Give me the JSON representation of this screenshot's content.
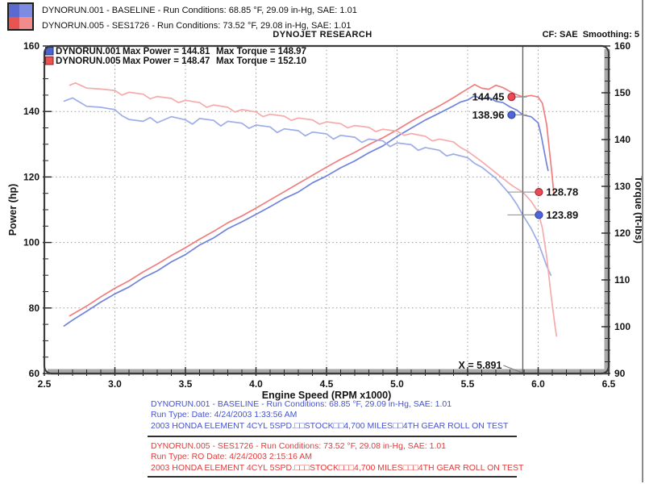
{
  "header": {
    "run1": "DYNORUN.001 - BASELINE  -  Run Conditions: 68.85 °F, 29.09 in-Hg, SAE: 1.01",
    "run2": "DYNORUN.005 - SES1726 -  Run Conditions: 73.52 °F, 29.08 in-Hg, SAE: 1.01",
    "brand": "DYNOJET RESEARCH",
    "cf": "CF: SAE  Smoothing: 5",
    "swatch_colors": {
      "blue_dark": "#5a6ad0",
      "blue_light": "#7d8ce2",
      "red_dark": "#e85450",
      "red_light": "#f28c8c"
    }
  },
  "chart_data": {
    "type": "line",
    "title": "DYNOJET RESEARCH",
    "xlabel": "Engine Speed (RPM x1000)",
    "ylabel_left": "Power (hp)",
    "ylabel_right": "Torque (ft-lbs)",
    "xlim": [
      2.5,
      6.5
    ],
    "x_major_step": 0.5,
    "x_minor_step": 0.1,
    "ylim_left": [
      60,
      160
    ],
    "y_left_major_step": 20,
    "y_left_minor_step": 5,
    "ylim_right": [
      90,
      160
    ],
    "y_right_major_step": 10,
    "y_right_minor_step": 2.5,
    "grid": {
      "vertical_rpm": [
        3.0,
        3.5,
        4.0,
        4.5,
        5.0,
        5.5,
        6.0
      ],
      "horizontal_power": [
        80,
        100,
        120,
        140
      ]
    },
    "legend": {
      "rows": [
        {
          "name": "DYNORUN.001",
          "max_power": "Max Power = 144.81",
          "max_torque": "Max Torque = 148.97",
          "swatch": "#4c63d2",
          "swatch_border": "#26306e"
        },
        {
          "name": "DYNORUN.005",
          "max_power": "Max Power = 148.47",
          "max_torque": "Max Torque = 152.10",
          "swatch": "#ef5050",
          "swatch_border": "#7e2727"
        }
      ]
    },
    "cursor": {
      "x": 5.891,
      "label": "X = 5.891"
    },
    "callouts": [
      {
        "label": "144.45",
        "axis": "left",
        "value": 144.45,
        "dot_fill": "#ea4a56",
        "dot_stroke": "#99202c",
        "side": "left"
      },
      {
        "label": "138.96",
        "axis": "left",
        "value": 138.96,
        "dot_fill": "#5066d6",
        "dot_stroke": "#273a99",
        "side": "left"
      },
      {
        "label": "128.78",
        "axis": "right",
        "value": 128.78,
        "dot_fill": "#ea4a56",
        "dot_stroke": "#99202c",
        "side": "right"
      },
      {
        "label": "123.89",
        "axis": "right",
        "value": 123.89,
        "dot_fill": "#5066d6",
        "dot_stroke": "#273a99",
        "side": "right"
      }
    ],
    "series": [
      {
        "name": "DYNORUN.001 Power",
        "axis": "left",
        "color": "#7083dc",
        "points": [
          [
            2.64,
            74.5
          ],
          [
            2.7,
            76.3
          ],
          [
            2.8,
            79.0
          ],
          [
            2.9,
            81.8
          ],
          [
            3.0,
            84.3
          ],
          [
            3.1,
            86.4
          ],
          [
            3.2,
            89.2
          ],
          [
            3.3,
            91.3
          ],
          [
            3.4,
            94.1
          ],
          [
            3.5,
            96.3
          ],
          [
            3.6,
            99.2
          ],
          [
            3.7,
            101.4
          ],
          [
            3.8,
            104.2
          ],
          [
            3.9,
            106.3
          ],
          [
            4.0,
            108.6
          ],
          [
            4.1,
            110.9
          ],
          [
            4.2,
            113.4
          ],
          [
            4.3,
            115.4
          ],
          [
            4.4,
            118.2
          ],
          [
            4.5,
            120.3
          ],
          [
            4.6,
            122.8
          ],
          [
            4.7,
            124.9
          ],
          [
            4.8,
            127.4
          ],
          [
            4.9,
            129.5
          ],
          [
            5.0,
            132.4
          ],
          [
            5.1,
            134.9
          ],
          [
            5.2,
            137.4
          ],
          [
            5.3,
            139.5
          ],
          [
            5.4,
            141.7
          ],
          [
            5.45,
            142.9
          ],
          [
            5.5,
            143.5
          ],
          [
            5.55,
            144.8
          ],
          [
            5.6,
            143.7
          ],
          [
            5.65,
            144.3
          ],
          [
            5.7,
            143.1
          ],
          [
            5.75,
            142.7
          ],
          [
            5.8,
            141.4
          ],
          [
            5.85,
            140.4
          ],
          [
            5.891,
            138.96
          ],
          [
            5.95,
            138.4
          ],
          [
            6.0,
            136.5
          ],
          [
            6.02,
            133.0
          ],
          [
            6.04,
            128.5
          ],
          [
            6.06,
            124.0
          ],
          [
            6.07,
            122.0
          ]
        ]
      },
      {
        "name": "DYNORUN.005 Power",
        "axis": "left",
        "color": "#f17e7e",
        "points": [
          [
            2.68,
            77.6
          ],
          [
            2.8,
            80.6
          ],
          [
            2.9,
            83.4
          ],
          [
            3.0,
            86.0
          ],
          [
            3.1,
            88.3
          ],
          [
            3.2,
            91.0
          ],
          [
            3.3,
            93.4
          ],
          [
            3.4,
            96.0
          ],
          [
            3.5,
            98.4
          ],
          [
            3.6,
            101.0
          ],
          [
            3.7,
            103.4
          ],
          [
            3.8,
            106.0
          ],
          [
            3.9,
            108.1
          ],
          [
            4.0,
            110.5
          ],
          [
            4.1,
            113.0
          ],
          [
            4.2,
            115.5
          ],
          [
            4.3,
            118.0
          ],
          [
            4.4,
            120.5
          ],
          [
            4.5,
            123.0
          ],
          [
            4.6,
            125.4
          ],
          [
            4.7,
            127.5
          ],
          [
            4.8,
            129.9
          ],
          [
            4.9,
            132.0
          ],
          [
            5.0,
            134.4
          ],
          [
            5.1,
            137.0
          ],
          [
            5.2,
            139.4
          ],
          [
            5.3,
            141.7
          ],
          [
            5.4,
            144.2
          ],
          [
            5.45,
            145.6
          ],
          [
            5.5,
            146.9
          ],
          [
            5.55,
            148.2
          ],
          [
            5.6,
            147.1
          ],
          [
            5.65,
            146.8
          ],
          [
            5.7,
            148.0
          ],
          [
            5.75,
            147.3
          ],
          [
            5.8,
            146.1
          ],
          [
            5.85,
            145.1
          ],
          [
            5.891,
            144.45
          ],
          [
            5.95,
            144.9
          ],
          [
            6.0,
            144.4
          ],
          [
            6.03,
            142.5
          ],
          [
            6.06,
            136.0
          ],
          [
            6.08,
            128.0
          ],
          [
            6.1,
            120.0
          ],
          [
            6.11,
            115.0
          ]
        ]
      },
      {
        "name": "DYNORUN.001 Torque",
        "axis": "right",
        "color": "#9dade9",
        "points": [
          [
            2.64,
            148.2
          ],
          [
            2.7,
            148.9
          ],
          [
            2.8,
            147.1
          ],
          [
            2.9,
            146.9
          ],
          [
            3.0,
            146.4
          ],
          [
            3.05,
            145.1
          ],
          [
            3.1,
            144.3
          ],
          [
            3.2,
            143.9
          ],
          [
            3.25,
            144.7
          ],
          [
            3.3,
            143.6
          ],
          [
            3.4,
            144.9
          ],
          [
            3.5,
            144.2
          ],
          [
            3.55,
            143.3
          ],
          [
            3.6,
            144.5
          ],
          [
            3.7,
            144.1
          ],
          [
            3.75,
            142.9
          ],
          [
            3.8,
            143.9
          ],
          [
            3.9,
            143.5
          ],
          [
            3.95,
            142.4
          ],
          [
            4.0,
            143.1
          ],
          [
            4.1,
            142.7
          ],
          [
            4.15,
            141.5
          ],
          [
            4.2,
            142.3
          ],
          [
            4.3,
            141.9
          ],
          [
            4.35,
            140.8
          ],
          [
            4.4,
            141.6
          ],
          [
            4.5,
            141.2
          ],
          [
            4.55,
            140.1
          ],
          [
            4.6,
            140.9
          ],
          [
            4.7,
            140.5
          ],
          [
            4.75,
            139.4
          ],
          [
            4.8,
            140.1
          ],
          [
            4.9,
            139.7
          ],
          [
            4.95,
            138.5
          ],
          [
            5.0,
            139.3
          ],
          [
            5.1,
            138.9
          ],
          [
            5.15,
            137.7
          ],
          [
            5.2,
            138.3
          ],
          [
            5.3,
            137.7
          ],
          [
            5.35,
            136.5
          ],
          [
            5.4,
            136.9
          ],
          [
            5.5,
            136.1
          ],
          [
            5.55,
            134.9
          ],
          [
            5.6,
            134.1
          ],
          [
            5.7,
            131.7
          ],
          [
            5.8,
            128.3
          ],
          [
            5.85,
            126.1
          ],
          [
            5.891,
            123.89
          ],
          [
            5.95,
            121.0
          ],
          [
            6.0,
            118.0
          ],
          [
            6.03,
            115.5
          ],
          [
            6.06,
            113.0
          ],
          [
            6.09,
            111.0
          ]
        ]
      },
      {
        "name": "DYNORUN.005 Torque",
        "axis": "right",
        "color": "#f6abab",
        "points": [
          [
            2.68,
            151.6
          ],
          [
            2.72,
            152.1
          ],
          [
            2.8,
            151.0
          ],
          [
            2.9,
            150.8
          ],
          [
            3.0,
            150.5
          ],
          [
            3.05,
            149.5
          ],
          [
            3.1,
            150.1
          ],
          [
            3.2,
            149.7
          ],
          [
            3.25,
            148.7
          ],
          [
            3.3,
            149.2
          ],
          [
            3.4,
            148.8
          ],
          [
            3.45,
            147.9
          ],
          [
            3.5,
            148.4
          ],
          [
            3.6,
            147.9
          ],
          [
            3.65,
            146.9
          ],
          [
            3.7,
            147.4
          ],
          [
            3.8,
            146.9
          ],
          [
            3.85,
            145.9
          ],
          [
            3.9,
            146.4
          ],
          [
            4.0,
            145.9
          ],
          [
            4.05,
            144.9
          ],
          [
            4.1,
            145.4
          ],
          [
            4.2,
            145.0
          ],
          [
            4.25,
            144.1
          ],
          [
            4.3,
            144.6
          ],
          [
            4.4,
            144.2
          ],
          [
            4.45,
            143.3
          ],
          [
            4.5,
            143.8
          ],
          [
            4.6,
            143.4
          ],
          [
            4.65,
            142.5
          ],
          [
            4.7,
            143.0
          ],
          [
            4.8,
            142.6
          ],
          [
            4.85,
            141.7
          ],
          [
            4.9,
            142.2
          ],
          [
            5.0,
            141.8
          ],
          [
            5.05,
            140.9
          ],
          [
            5.1,
            141.3
          ],
          [
            5.2,
            140.7
          ],
          [
            5.25,
            139.7
          ],
          [
            5.3,
            140.1
          ],
          [
            5.4,
            139.5
          ],
          [
            5.45,
            138.3
          ],
          [
            5.5,
            137.5
          ],
          [
            5.6,
            135.3
          ],
          [
            5.7,
            132.9
          ],
          [
            5.8,
            130.5
          ],
          [
            5.85,
            129.5
          ],
          [
            5.891,
            128.78
          ],
          [
            5.95,
            126.8
          ],
          [
            6.0,
            124.5
          ],
          [
            6.03,
            121.0
          ],
          [
            6.06,
            115.0
          ],
          [
            6.09,
            107.0
          ],
          [
            6.12,
            100.0
          ],
          [
            6.13,
            98.0
          ]
        ]
      }
    ]
  },
  "footer": {
    "runs": [
      {
        "color": "#4553cf",
        "lines": [
          "DYNORUN.001 - BASELINE  -  Run Conditions: 68.85 °F, 29.09 in-Hg, SAE: 1.01",
          "Run Type:   Date: 4/24/2003 1:33:56 AM",
          "2003 HONDA ELEMENT 4CYL 5SPD.□□STOCK□□4,700 MILES□□4TH GEAR ROLL ON TEST"
        ]
      },
      {
        "color": "#e23b3b",
        "lines": [
          "DYNORUN.005 - SES1726 -  Run Conditions: 73.52 °F, 29.08 in-Hg, SAE: 1.01",
          "Run Type: RO  Date: 4/24/2003 2:15:16 AM",
          "2003 HONDA ELEMENT 4CYL 5SPD.□□□STOCK□□□4,700 MILES□□□4TH GEAR ROLL ON TEST"
        ]
      }
    ]
  }
}
